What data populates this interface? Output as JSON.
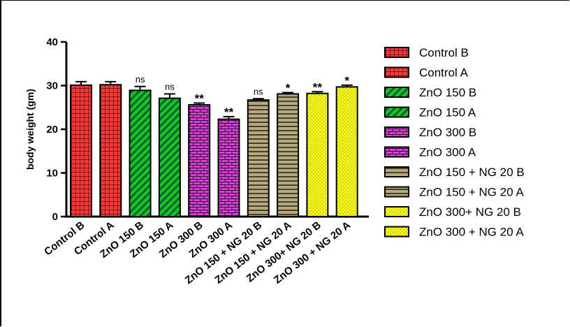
{
  "chart_data": {
    "type": "bar",
    "title": "",
    "xlabel": "",
    "ylabel": "body weight (gm)",
    "ylim": [
      0,
      40
    ],
    "yticks": [
      0,
      10,
      20,
      30,
      40
    ],
    "grid": false,
    "legend_position": "right",
    "categories": [
      "Control B",
      "Control A",
      "ZnO 150 B",
      "ZnO 150 A",
      "ZnO 300 B",
      "ZnO 300 A",
      "ZnO 150 + NG 20 B",
      "ZnO 150 + NG 20 A",
      "ZnO 300+ NG 20 B",
      "ZnO 300 + NG 20 A"
    ],
    "values": [
      30.1,
      30.2,
      28.9,
      27.1,
      25.6,
      22.3,
      26.7,
      28.1,
      28.2,
      29.7
    ],
    "errors": [
      0.8,
      0.7,
      0.9,
      1.0,
      0.4,
      0.6,
      0.3,
      0.3,
      0.4,
      0.4
    ],
    "significance": [
      "",
      "",
      "ns",
      "ns",
      "**",
      "**",
      "ns",
      "*",
      "**",
      "*"
    ],
    "colors": [
      "#ef3b3b",
      "#ef3b3b",
      "#1ec41e",
      "#1ec41e",
      "#cf45cf",
      "#cf45cf",
      "#b4a97c",
      "#b4a97c",
      "#f4f41c",
      "#f4f41c"
    ],
    "patterns": [
      "grid",
      "grid",
      "diag",
      "diag",
      "brick",
      "brick",
      "hstripe",
      "hstripe",
      "dots",
      "dots"
    ],
    "legend": [
      "Control B",
      "Control A",
      "ZnO 150 B",
      "ZnO 150 A",
      "ZnO 300 B",
      "ZnO 300 A",
      "ZnO 150 + NG 20 B",
      "ZnO 150 + NG 20 A",
      "ZnO 300+ NG 20 B",
      "ZnO 300 + NG 20 A"
    ]
  }
}
